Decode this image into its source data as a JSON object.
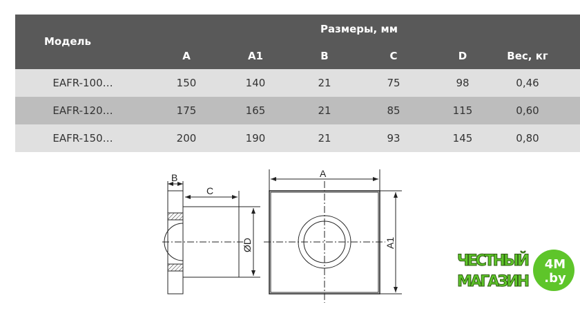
{
  "table": {
    "group_header": "Размеры, мм",
    "model_header": "Модель",
    "columns": [
      "A",
      "A1",
      "B",
      "C",
      "D",
      "Вес, кг"
    ],
    "rows": [
      {
        "model": "EAFR-100…",
        "values": [
          "150",
          "140",
          "21",
          "75",
          "98",
          "0,46"
        ]
      },
      {
        "model": "EAFR-120…",
        "values": [
          "175",
          "165",
          "21",
          "85",
          "115",
          "0,60"
        ]
      },
      {
        "model": "EAFR-150…",
        "values": [
          "200",
          "190",
          "21",
          "93",
          "145",
          "0,80"
        ]
      }
    ],
    "colors": {
      "header": "#595959",
      "row_light": "#e0e0e0",
      "row_dark": "#bdbdbd"
    }
  },
  "drawing": {
    "labels": {
      "b": "B",
      "c": "C",
      "d": "ØD",
      "a": "A",
      "a1": "A1"
    }
  },
  "logo": {
    "line1": "ЧЕСТНЫЙ",
    "line2": "МАГАЗИН",
    "badge1": "4M",
    "badge2": ".by",
    "color": "#5ec52a"
  }
}
